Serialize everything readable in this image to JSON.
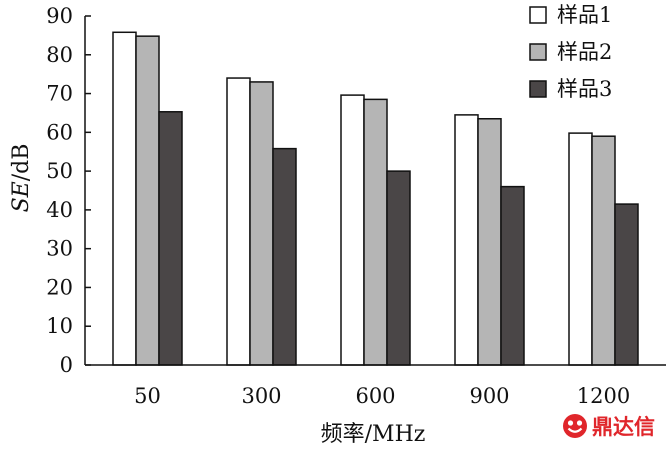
{
  "chart_data": {
    "type": "bar",
    "categories": [
      "50",
      "300",
      "600",
      "900",
      "1200"
    ],
    "series": [
      {
        "name": "样品1",
        "color": "#ffffff",
        "values": [
          85.8,
          74.0,
          69.6,
          64.5,
          59.8
        ]
      },
      {
        "name": "样品2",
        "color": "#b5b5b5",
        "values": [
          84.8,
          73.0,
          68.5,
          63.5,
          59.0
        ]
      },
      {
        "name": "样品3",
        "color": "#4a4647",
        "values": [
          65.3,
          55.8,
          50.0,
          46.0,
          41.5
        ]
      }
    ],
    "xlabel": "频率/MHz",
    "ylabel_italic": "SE",
    "ylabel_unit": "/dB",
    "ylim": [
      0,
      90
    ],
    "yticks": [
      "0",
      "10",
      "20",
      "30",
      "40",
      "50",
      "60",
      "70",
      "80",
      "90"
    ],
    "grid": false,
    "legend_position": "top-right"
  },
  "watermark": {
    "text": "鼎达信",
    "icon": "smiley-logo-icon",
    "color": "#e0262b"
  }
}
